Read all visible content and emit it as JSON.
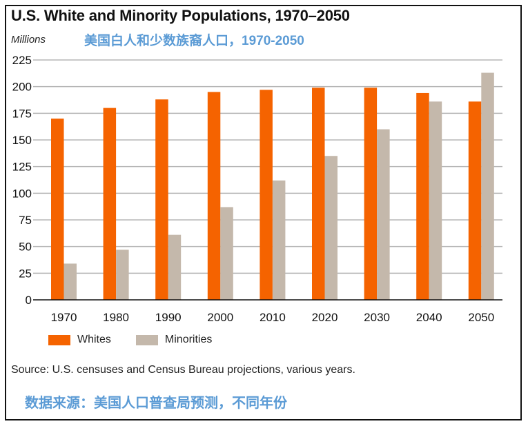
{
  "header": {
    "title": "U.S. White and Minority Populations, 1970–2050",
    "units": "Millions",
    "cn_title": "美国白人和少数族裔人口，1970-2050"
  },
  "footer": {
    "source": "Source: U.S. censuses and Census Bureau projections, various years.",
    "cn_source": "数据来源：美国人口普查局预测，不同年份"
  },
  "colors": {
    "whites": "#f56300",
    "minorities": "#c4b8ab",
    "grid": "#b5b5b5",
    "cn_text": "#5b9bd5"
  },
  "chart_data": {
    "type": "bar",
    "title": "U.S. White and Minority Populations, 1970–2050",
    "xlabel": "",
    "ylabel": "Millions",
    "ylim": [
      0,
      225
    ],
    "yticks": [
      0,
      25,
      50,
      75,
      100,
      125,
      150,
      175,
      200,
      225
    ],
    "grid": true,
    "legend_position": "bottom-left",
    "categories": [
      "1970",
      "1980",
      "1990",
      "2000",
      "2010",
      "2020",
      "2030",
      "2040",
      "2050"
    ],
    "series": [
      {
        "name": "Whites",
        "values": [
          170,
          180,
          188,
          195,
          197,
          199,
          199,
          194,
          186
        ]
      },
      {
        "name": "Minorities",
        "values": [
          34,
          47,
          61,
          87,
          112,
          135,
          160,
          186,
          213
        ]
      }
    ]
  }
}
